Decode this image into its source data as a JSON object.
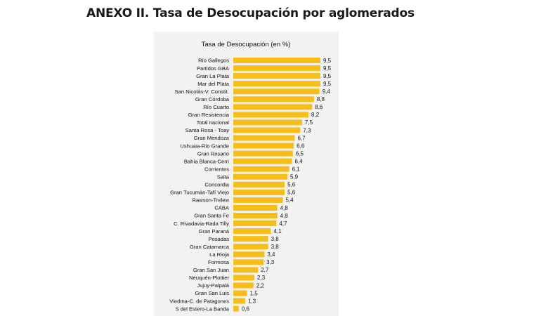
{
  "page": {
    "title": "ANEXO II. Tasa de Desocupación por aglomerados"
  },
  "chart_data": {
    "type": "bar",
    "orientation": "horizontal",
    "title": "Tasa de Desocupación (en %)",
    "bar_color": "#f7bd19",
    "background_color": "#f2f2f2",
    "categories": [
      "Río Gallegos",
      "Partidos GBA",
      "Gran La Plata",
      "Mar del Plata",
      "San Nicolás-V. Constit.",
      "Gran Córdoba",
      "Río Cuarto",
      "Gran Resistencia",
      "Total nacional",
      "Santa Rosa - Toay",
      "Gran Mendoza",
      "Ushuaia-Río Grande",
      "Gran Rosario",
      "Bahía Blanca-Cerri",
      "Corrientes",
      "Salta",
      "Concordia",
      "Gran Tucumán-Tafí Viejo",
      "Rawson-Trelew",
      "CABA",
      "Gran Santa Fe",
      "C. Rivadavia-Rada Tilly",
      "Gran Paraná",
      "Posadas",
      "Gran Catamarca",
      "La Rioja",
      "Formosa",
      "Gran San Juan",
      "Neuquén-Plottier",
      "Jujuy-Palpalá",
      "Gran San Luis",
      "Viedma-C. de Patagones",
      "S del Estero-La Banda"
    ],
    "values": [
      9.5,
      9.5,
      9.5,
      9.5,
      9.4,
      8.8,
      8.6,
      8.2,
      7.5,
      7.3,
      6.7,
      6.6,
      6.5,
      6.4,
      6.1,
      5.9,
      5.6,
      5.6,
      5.4,
      4.8,
      4.8,
      4.7,
      4.1,
      3.8,
      3.8,
      3.4,
      3.3,
      2.7,
      2.3,
      2.2,
      1.5,
      1.3,
      0.6
    ],
    "value_labels": [
      "9,5",
      "9,5",
      "9,5",
      "9,5",
      "9,4",
      "8,8",
      "8,6",
      "8,2",
      "7,5",
      "7,3",
      "6,7",
      "6,6",
      "6,5",
      "6,4",
      "6,1",
      "5,9",
      "5,6",
      "5,6",
      "5,4",
      "4,8",
      "4,8",
      "4,7",
      "4,1",
      "3,8",
      "3,8",
      "3,4",
      "3,3",
      "2,7",
      "2,3",
      "2,2",
      "1,5",
      "1,3",
      "0,6"
    ],
    "xlim": [
      0,
      9.5
    ],
    "grid": false,
    "legend": "none"
  }
}
